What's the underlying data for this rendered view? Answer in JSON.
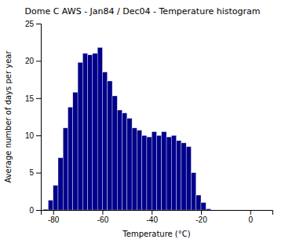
{
  "chart_data": {
    "type": "histogram",
    "title": "Dome C AWS - Jan84 / Dec04 - Temperature histogram",
    "xlabel": "Temperature (°C)",
    "ylabel": "Average number of days per year",
    "bins": [
      -84,
      -82,
      -80,
      -78,
      -76,
      -74,
      -72,
      -70,
      -68,
      -66,
      -64,
      -62,
      -60,
      -58,
      -56,
      -54,
      -52,
      -50,
      -48,
      -46,
      -44,
      -42,
      -40,
      -38,
      -36,
      -34,
      -32,
      -30,
      -28,
      -26,
      -24,
      -22,
      -20,
      -18,
      -16,
      -14,
      -12,
      -10
    ],
    "values": [
      0.1,
      1.3,
      3.3,
      7.0,
      11.0,
      13.8,
      15.8,
      19.8,
      21.0,
      20.8,
      21.0,
      21.8,
      18.5,
      17.3,
      15.3,
      13.4,
      13.0,
      12.3,
      11.0,
      10.7,
      10.0,
      9.8,
      10.5,
      10.0,
      10.5,
      9.8,
      10.0,
      9.3,
      9.0,
      8.5,
      5.0,
      2.0,
      1.0,
      0.15,
      0.0,
      0.0,
      0.0
    ],
    "color": "#00008B",
    "xlim": [
      -85,
      9
    ],
    "xticks": [
      -80,
      -60,
      -40,
      -20,
      0
    ],
    "ylim": [
      0,
      25
    ],
    "yticks": [
      0,
      5,
      10,
      15,
      20,
      25
    ]
  }
}
